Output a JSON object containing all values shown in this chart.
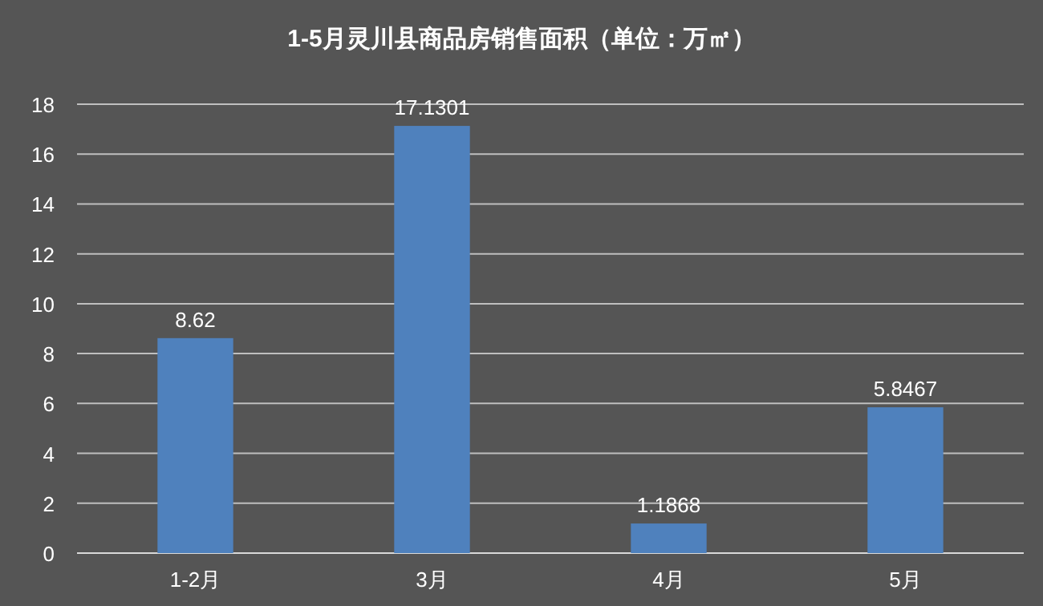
{
  "chart_data": {
    "type": "bar",
    "title": "1-5月灵川县商品房销售面积（单位：万㎡）",
    "categories": [
      "1-2月",
      "3月",
      "4月",
      "5月"
    ],
    "values": [
      8.62,
      17.1301,
      1.1868,
      5.8467
    ],
    "color": "#4f81bd",
    "ylim": [
      0,
      18
    ],
    "yticks": [
      0,
      2,
      4,
      6,
      8,
      10,
      12,
      14,
      16,
      18
    ],
    "grid": "y",
    "data_labels": true
  }
}
